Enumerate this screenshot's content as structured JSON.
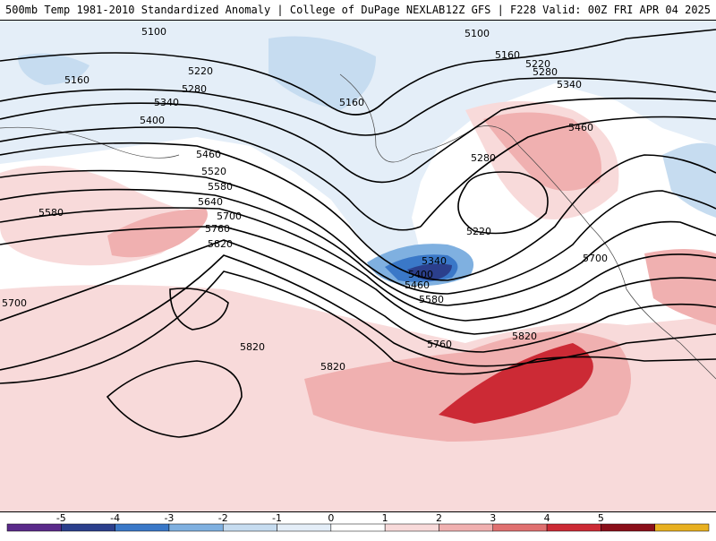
{
  "header": {
    "title_left": "500mb Temp 1981-2010 Standardized Anomaly | College of DuPage NEXLAB",
    "title_right": "12Z GFS | F228 Valid: 00Z FRI APR 04 2025"
  },
  "contours": [
    {
      "label": "5100",
      "label_pos": [
        [
          172,
          34
        ],
        [
          533,
          36
        ]
      ]
    },
    {
      "label": "5160",
      "label_pos": [
        [
          86,
          88
        ],
        [
          393,
          113
        ],
        [
          567,
          60
        ]
      ]
    },
    {
      "label": "5220",
      "label_pos": [
        [
          224,
          78
        ],
        [
          535,
          257
        ],
        [
          601,
          70
        ]
      ]
    },
    {
      "label": "5280",
      "label_pos": [
        [
          217,
          98
        ],
        [
          540,
          175
        ],
        [
          609,
          79
        ]
      ]
    },
    {
      "label": "5340",
      "label_pos": [
        [
          186,
          113
        ],
        [
          485,
          290
        ],
        [
          636,
          93
        ]
      ]
    },
    {
      "label": "5400",
      "label_pos": [
        [
          170,
          133
        ],
        [
          470,
          305
        ]
      ]
    },
    {
      "label": "5460",
      "label_pos": [
        [
          233,
          171
        ],
        [
          466,
          317
        ],
        [
          649,
          141
        ]
      ]
    },
    {
      "label": "5520",
      "label_pos": [
        [
          239,
          190
        ]
      ]
    },
    {
      "label": "5580",
      "label_pos": [
        [
          57,
          236
        ],
        [
          246,
          207
        ],
        [
          482,
          333
        ]
      ]
    },
    {
      "label": "5640",
      "label_pos": [
        [
          235,
          224
        ]
      ]
    },
    {
      "label": "5700",
      "label_pos": [
        [
          256,
          240
        ],
        [
          16,
          337
        ],
        [
          665,
          287
        ]
      ]
    },
    {
      "label": "5760",
      "label_pos": [
        [
          243,
          254
        ],
        [
          491,
          383
        ]
      ]
    },
    {
      "label": "5820",
      "label_pos": [
        [
          246,
          271
        ],
        [
          282,
          386
        ],
        [
          372,
          408
        ],
        [
          586,
          374
        ]
      ]
    }
  ],
  "colorbar": {
    "ticks": [
      "-5",
      "-4",
      "-3",
      "-2",
      "-1",
      "0",
      "1",
      "2",
      "3",
      "4",
      "5"
    ],
    "colors": [
      "#5a2a8a",
      "#2b3f8c",
      "#3a78c8",
      "#7fb0e0",
      "#c6dcf0",
      "#e4eef8",
      "#ffffff",
      "#f8dada",
      "#f0b0b0",
      "#e07070",
      "#cc2a35",
      "#8a0f1a",
      "#e8b020"
    ]
  }
}
